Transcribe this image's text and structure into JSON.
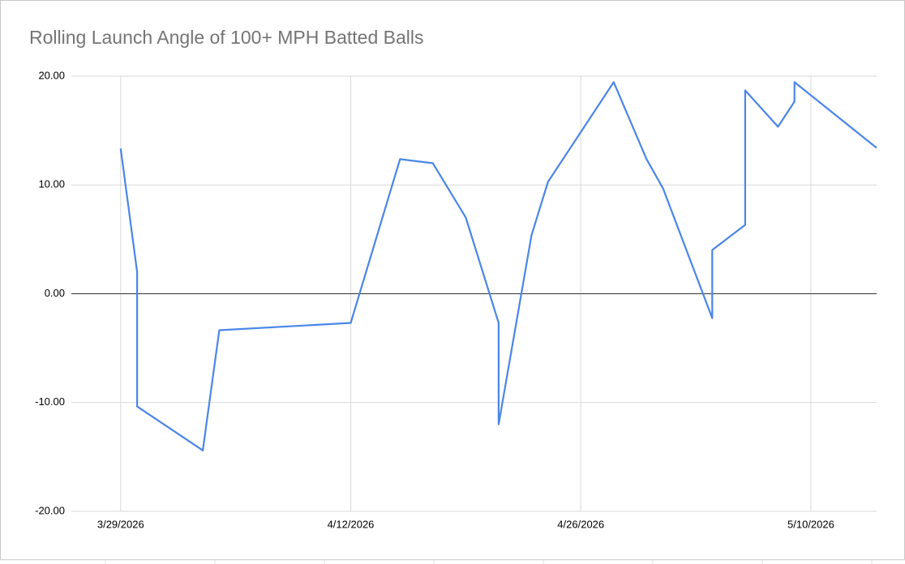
{
  "chart_data": {
    "type": "line",
    "title": "Rolling Launch Angle of 100+ MPH Batted Balls",
    "x": [
      "3/29/2026",
      "3/30/2026",
      "3/30/2026",
      "4/3/2026",
      "4/4/2026",
      "4/12/2026",
      "4/15/2026",
      "4/17/2026",
      "4/19/2026",
      "4/21/2026",
      "4/21/2026",
      "4/23/2026",
      "4/24/2026",
      "4/28/2026",
      "4/30/2026",
      "5/1/2026",
      "5/4/2026",
      "5/4/2026",
      "5/6/2026",
      "5/6/2026",
      "5/8/2026",
      "5/9/2026",
      "5/9/2026",
      "5/14/2026"
    ],
    "values": [
      13.34,
      2.0,
      -10.36,
      -14.4,
      -3.35,
      -2.68,
      12.37,
      12.0,
      7.0,
      -2.68,
      -12.0,
      5.37,
      10.28,
      19.45,
      12.37,
      9.69,
      -2.24,
      4.02,
      6.33,
      18.7,
      15.35,
      17.66,
      19.45,
      13.41
    ],
    "color": "#4a86e8",
    "xlim": [
      "3/26/2026",
      "5/14/2026"
    ],
    "xticks": [
      "3/29/2026",
      "4/12/2026",
      "4/26/2026",
      "5/10/2026"
    ],
    "ylim": [
      -20,
      20
    ],
    "yticks": [
      {
        "value": -20,
        "label": "-20.00"
      },
      {
        "value": -10,
        "label": "-10.00"
      },
      {
        "value": 0,
        "label": "0.00"
      },
      {
        "value": 10,
        "label": "10.00"
      },
      {
        "value": 20,
        "label": "20.00"
      }
    ],
    "grid": true
  }
}
